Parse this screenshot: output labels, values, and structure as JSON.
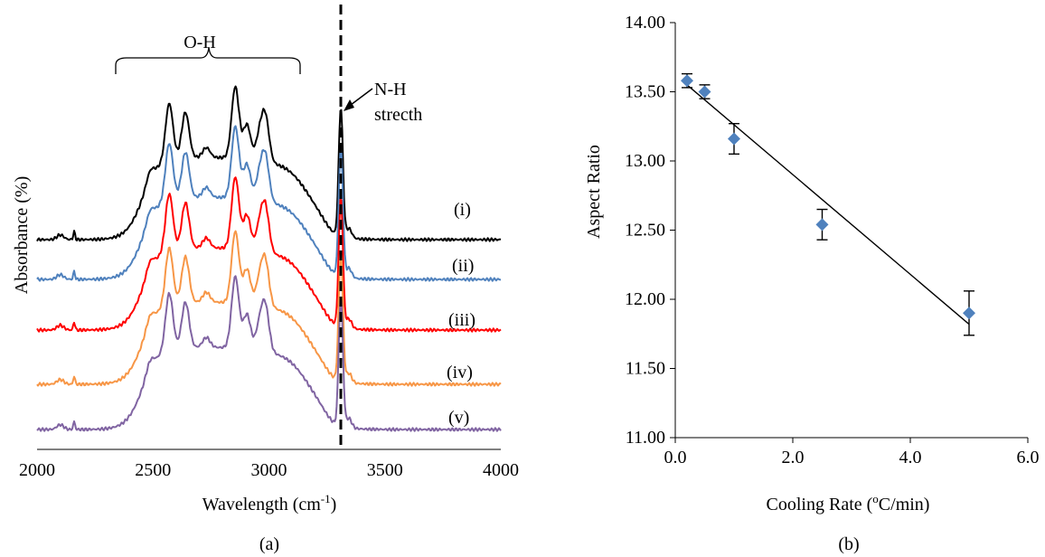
{
  "chart_data": [
    {
      "type": "line",
      "panel_label": "(a)",
      "xlabel": "Wavelength (cm",
      "xlabel_sup": "-1",
      "xlabel_end": ")",
      "ylabel": "Absorbance (%)",
      "xlim": [
        2000,
        4000
      ],
      "x_ticks": [
        "2000",
        "2500",
        "3000",
        "3500",
        "4000"
      ],
      "grid": false,
      "annotations": {
        "oh_label": "O-H",
        "nh_label_line1": "N-H",
        "nh_label_line2": "strecth",
        "nh_position": 3315,
        "oh_range": [
          2330,
          3130
        ]
      },
      "series": [
        {
          "name": "(i)",
          "color": "#000000",
          "offset": 4,
          "peaks": [
            [
              2487,
              0.55
            ],
            [
              2570,
              0.88
            ],
            [
              2640,
              0.8
            ],
            [
              2730,
              0.55
            ],
            [
              2855,
              0.98
            ],
            [
              2905,
              0.72
            ],
            [
              2960,
              0.65
            ],
            [
              2985,
              0.78
            ],
            [
              3310,
              0.92
            ]
          ]
        },
        {
          "name": "(ii)",
          "color": "#4f81bd",
          "offset": 3,
          "peaks": [
            [
              2487,
              0.55
            ],
            [
              2570,
              0.88
            ],
            [
              2640,
              0.8
            ],
            [
              2730,
              0.55
            ],
            [
              2855,
              0.98
            ],
            [
              2905,
              0.72
            ],
            [
              2960,
              0.65
            ],
            [
              2985,
              0.78
            ],
            [
              3310,
              0.92
            ]
          ]
        },
        {
          "name": "(iii)",
          "color": "#ff0000",
          "offset": 2,
          "peaks": [
            [
              2487,
              0.55
            ],
            [
              2570,
              0.88
            ],
            [
              2640,
              0.8
            ],
            [
              2730,
              0.55
            ],
            [
              2855,
              0.98
            ],
            [
              2905,
              0.72
            ],
            [
              2960,
              0.65
            ],
            [
              2985,
              0.78
            ],
            [
              3310,
              0.92
            ]
          ]
        },
        {
          "name": "(iv)",
          "color": "#f79646",
          "offset": 1,
          "peaks": [
            [
              2487,
              0.55
            ],
            [
              2570,
              0.88
            ],
            [
              2640,
              0.8
            ],
            [
              2730,
              0.55
            ],
            [
              2855,
              0.98
            ],
            [
              2905,
              0.72
            ],
            [
              2960,
              0.65
            ],
            [
              2985,
              0.78
            ],
            [
              3310,
              0.92
            ]
          ]
        },
        {
          "name": "(v)",
          "color": "#8064a2",
          "offset": 0,
          "peaks": [
            [
              2487,
              0.55
            ],
            [
              2570,
              0.88
            ],
            [
              2640,
              0.8
            ],
            [
              2730,
              0.55
            ],
            [
              2855,
              0.98
            ],
            [
              2905,
              0.72
            ],
            [
              2960,
              0.65
            ],
            [
              2985,
              0.78
            ],
            [
              3310,
              0.92
            ]
          ]
        }
      ]
    },
    {
      "type": "scatter",
      "panel_label": "(b)",
      "xlabel": "Cooling Rate (",
      "xlabel_sup": "o",
      "xlabel_end": "C/min)",
      "ylabel": "Aspect Ratio",
      "xlim": [
        0,
        6
      ],
      "ylim": [
        11,
        14
      ],
      "x_ticks": [
        "0.0",
        "2.0",
        "4.0",
        "6.0"
      ],
      "y_ticks": [
        "11.00",
        "11.50",
        "12.00",
        "12.50",
        "13.00",
        "13.50",
        "14.00"
      ],
      "grid": false,
      "marker_color": "#4f81bd",
      "points": [
        {
          "x": 0.2,
          "y": 13.58,
          "err": 0.05
        },
        {
          "x": 0.5,
          "y": 13.5,
          "err": 0.05
        },
        {
          "x": 1.0,
          "y": 13.16,
          "err": 0.11
        },
        {
          "x": 2.5,
          "y": 12.54,
          "err": 0.11
        },
        {
          "x": 5.0,
          "y": 11.9,
          "err": 0.16
        }
      ],
      "trendline": {
        "x": [
          0.2,
          5.0
        ],
        "y": [
          13.55,
          11.82
        ]
      }
    }
  ]
}
